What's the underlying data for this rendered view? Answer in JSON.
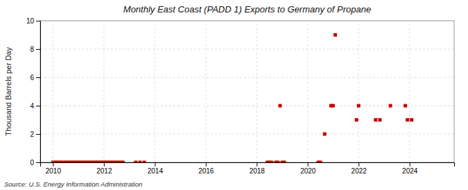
{
  "chart_data": {
    "type": "scatter",
    "title": "Monthly East Coast (PADD 1) Exports to Germany of Propane",
    "ylabel": "Thousand Barrels per Day",
    "source": "Source: U.S. Energy Information Administration",
    "color": "#cc0000",
    "marker": "square",
    "grid": true,
    "xlim": [
      2009.5,
      2025.75
    ],
    "xticks": [
      2010,
      2012,
      2014,
      2016,
      2018,
      2020,
      2022,
      2024
    ],
    "ylim": [
      0,
      10
    ],
    "yticks": [
      0,
      2,
      4,
      6,
      8,
      10
    ],
    "x": [
      2010.0,
      2010.083,
      2010.167,
      2010.25,
      2010.333,
      2010.417,
      2010.5,
      2010.583,
      2010.667,
      2010.75,
      2010.833,
      2010.917,
      2011.0,
      2011.083,
      2011.167,
      2011.25,
      2011.333,
      2011.417,
      2011.5,
      2011.583,
      2011.667,
      2011.75,
      2011.833,
      2011.917,
      2012.0,
      2012.083,
      2012.167,
      2012.25,
      2012.333,
      2012.417,
      2012.5,
      2012.583,
      2012.667,
      2012.75,
      2013.25,
      2013.417,
      2013.583,
      2018.417,
      2018.5,
      2018.583,
      2018.75,
      2018.833,
      2018.917,
      2019.0,
      2019.083,
      2020.417,
      2020.5,
      2020.667,
      2020.917,
      2021.0,
      2021.083,
      2021.917,
      2022.0,
      2022.667,
      2022.833,
      2023.25,
      2023.833,
      2023.917,
      2024.083
    ],
    "values": [
      0.0,
      0.0,
      0.0,
      0.0,
      0.0,
      0.0,
      0.0,
      0.0,
      0.0,
      0.0,
      0.0,
      0.0,
      0.0,
      0.0,
      0.0,
      0.0,
      0.0,
      0.0,
      0.0,
      0.0,
      0.0,
      0.0,
      0.0,
      0.0,
      0.0,
      0.0,
      0.0,
      0.0,
      0.0,
      0.0,
      0.0,
      0.0,
      0.0,
      0.0,
      0.0,
      0.0,
      0.0,
      0.0,
      0.0,
      0.0,
      0.0,
      0.0,
      4.0,
      0.0,
      0.0,
      0.0,
      0.0,
      2.0,
      4.0,
      4.0,
      9.0,
      3.0,
      4.0,
      3.0,
      3.0,
      4.0,
      4.0,
      3.0,
      3.0
    ]
  }
}
